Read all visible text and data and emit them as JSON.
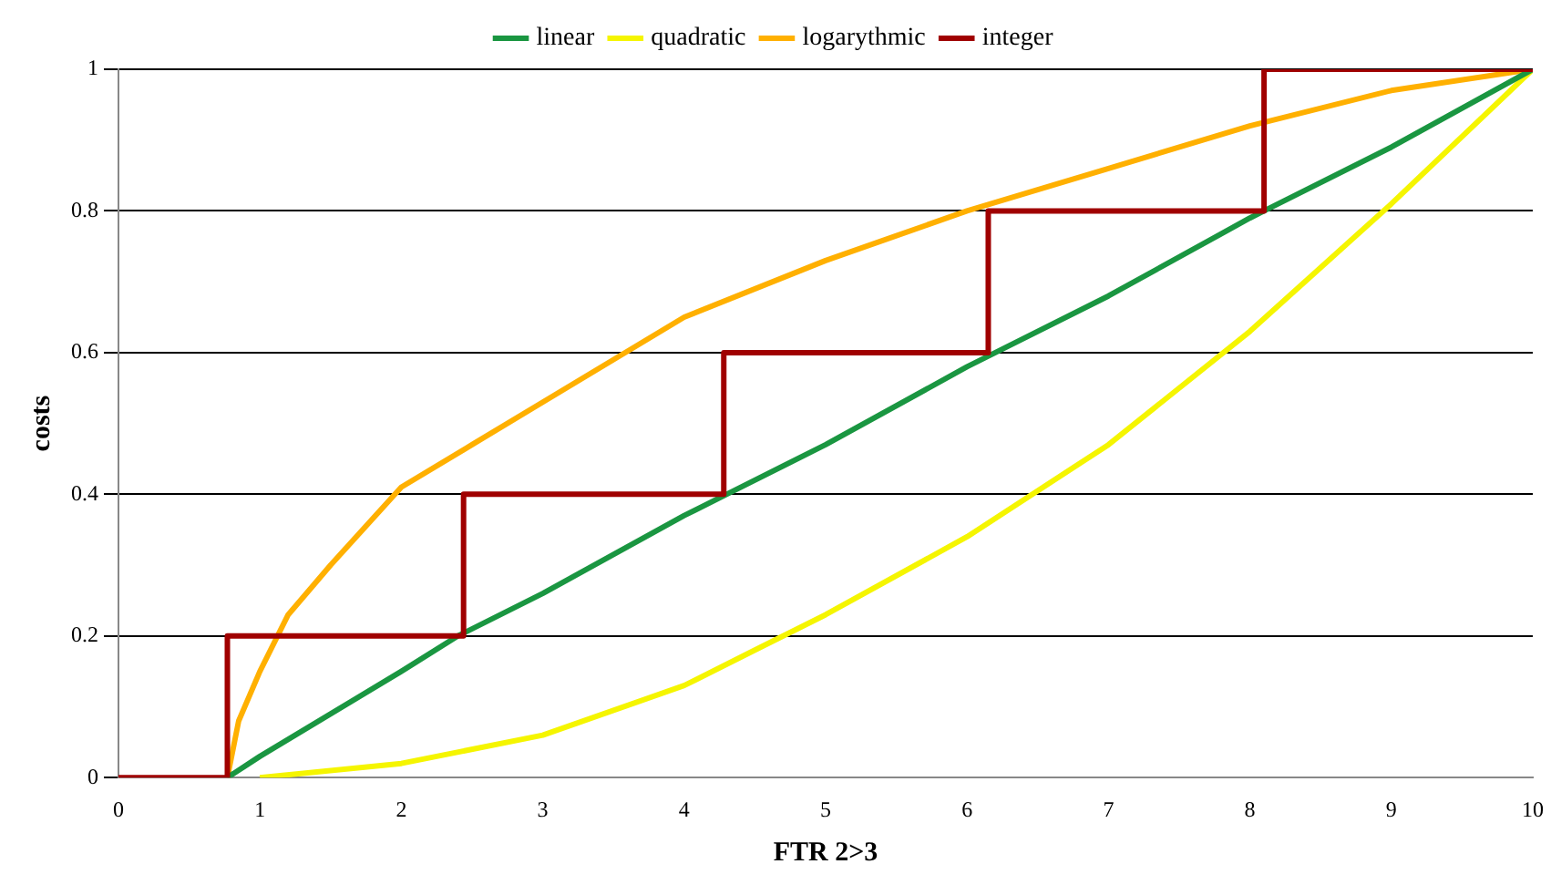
{
  "chart_data": {
    "type": "line",
    "xlabel": "FTR 2>3",
    "ylabel": "costs",
    "xlim": [
      0,
      10
    ],
    "xticks": [
      0,
      1,
      2,
      3,
      4,
      5,
      6,
      7,
      8,
      9,
      10
    ],
    "ylim": [
      0,
      1
    ],
    "yticks": [
      0,
      0.2,
      0.4,
      0.6,
      0.8,
      1
    ],
    "grid": "y",
    "legend": "top",
    "marker": "none",
    "line_style": "solid",
    "series": [
      {
        "name": "linear",
        "color": "#1a9641",
        "x": [
          0.77,
          1,
          2,
          2.4,
          3,
          4,
          4.3,
          5,
          6,
          6.2,
          7,
          8,
          8.1,
          9,
          10
        ],
        "values": [
          0,
          0.03,
          0.15,
          0.2,
          0.26,
          0.37,
          0.4,
          0.47,
          0.58,
          0.6,
          0.68,
          0.79,
          0.8,
          0.89,
          1
        ]
      },
      {
        "name": "quadratic",
        "color": "#f5f500",
        "x": [
          1,
          2,
          3,
          4,
          4.5,
          5,
          6,
          7,
          8,
          9,
          10
        ],
        "values": [
          0,
          0.02,
          0.06,
          0.13,
          0.18,
          0.23,
          0.34,
          0.47,
          0.63,
          0.81,
          1
        ]
      },
      {
        "name": "logarythmic",
        "color": "#ffb000",
        "x": [
          0.77,
          0.85,
          1,
          1.2,
          1.5,
          2,
          2.5,
          3,
          4,
          5,
          6,
          7,
          8,
          9,
          10
        ],
        "values": [
          0,
          0.08,
          0.15,
          0.23,
          0.3,
          0.41,
          0.47,
          0.53,
          0.65,
          0.73,
          0.8,
          0.86,
          0.92,
          0.97,
          1
        ]
      },
      {
        "name": "integer",
        "type": "step",
        "color": "#a00000",
        "x": [
          0,
          0.77,
          2.44,
          4.28,
          6.15,
          8.1,
          10
        ],
        "values": [
          0,
          0.2,
          0.4,
          0.6,
          0.8,
          1,
          1
        ]
      }
    ]
  }
}
